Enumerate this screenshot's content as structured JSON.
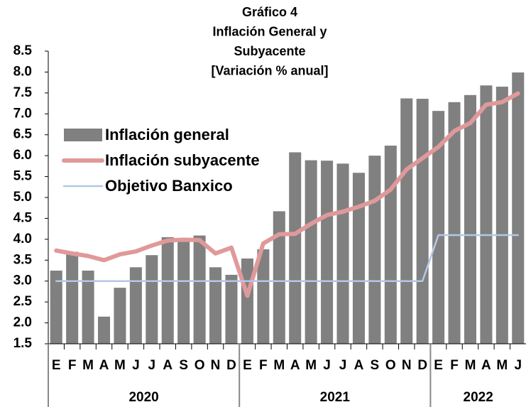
{
  "chart_data": {
    "type": "bar-line",
    "title": [
      "Gráfico 4",
      "Inflación General y",
      "Subyacente",
      "[Variación % anual]"
    ],
    "categories": [
      [
        "E",
        "2020"
      ],
      [
        "F",
        "2020"
      ],
      [
        "M",
        "2020"
      ],
      [
        "A",
        "2020"
      ],
      [
        "M",
        "2020"
      ],
      [
        "J",
        "2020"
      ],
      [
        "J",
        "2020"
      ],
      [
        "A",
        "2020"
      ],
      [
        "S",
        "2020"
      ],
      [
        "O",
        "2020"
      ],
      [
        "N",
        "2020"
      ],
      [
        "D",
        "2020"
      ],
      [
        "E",
        "2021"
      ],
      [
        "F",
        "2021"
      ],
      [
        "M",
        "2021"
      ],
      [
        "A",
        "2021"
      ],
      [
        "M",
        "2021"
      ],
      [
        "J",
        "2021"
      ],
      [
        "J",
        "2021"
      ],
      [
        "A",
        "2021"
      ],
      [
        "S",
        "2021"
      ],
      [
        "O",
        "2021"
      ],
      [
        "N",
        "2021"
      ],
      [
        "D",
        "2021"
      ],
      [
        "E",
        "2022"
      ],
      [
        "F",
        "2022"
      ],
      [
        "M",
        "2022"
      ],
      [
        "A",
        "2022"
      ],
      [
        "M",
        "2022"
      ],
      [
        "J",
        "2022"
      ]
    ],
    "series": [
      {
        "name": "Inflación general",
        "type": "bar",
        "color": "#808080",
        "values": [
          3.25,
          3.7,
          3.25,
          2.15,
          2.84,
          3.33,
          3.62,
          4.05,
          4.01,
          4.09,
          3.33,
          3.15,
          3.54,
          3.76,
          4.67,
          6.08,
          5.89,
          5.88,
          5.81,
          5.59,
          6.0,
          6.24,
          7.37,
          7.36,
          7.07,
          7.28,
          7.45,
          7.68,
          7.65,
          7.99
        ]
      },
      {
        "name": "Inflación subyacente",
        "type": "line",
        "color": "#e0999a",
        "width": 6,
        "values": [
          3.73,
          3.66,
          3.6,
          3.5,
          3.64,
          3.71,
          3.85,
          3.97,
          3.99,
          3.98,
          3.66,
          3.8,
          2.65,
          3.9,
          4.12,
          4.13,
          4.37,
          4.58,
          4.66,
          4.78,
          4.92,
          5.19,
          5.67,
          5.94,
          6.21,
          6.59,
          6.78,
          7.22,
          7.28,
          7.49
        ]
      },
      {
        "name": "Objetivo Banxico",
        "type": "line",
        "color": "#b4c7e7",
        "width": 2.5,
        "values": [
          3,
          3,
          3,
          3,
          3,
          3,
          3,
          3,
          3,
          3,
          3,
          3,
          3,
          3,
          3,
          3,
          3,
          3,
          3,
          3,
          3,
          3,
          3,
          3,
          4.1,
          4.1,
          4.1,
          4.1,
          4.1,
          4.1
        ]
      }
    ],
    "ylim": [
      1.5,
      8.5
    ],
    "yticks": [
      {
        "value": 1.5,
        "label": "1.5"
      },
      {
        "value": 2,
        "label": "2.0"
      },
      {
        "value": 2.5,
        "label": "2.5"
      },
      {
        "value": 3,
        "label": "3.0"
      },
      {
        "value": 3.5,
        "label": "3.5"
      },
      {
        "value": 4,
        "label": "4.0"
      },
      {
        "value": 4.5,
        "label": "4.5"
      },
      {
        "value": 5,
        "label": "5.0"
      },
      {
        "value": 5.5,
        "label": "5.5"
      },
      {
        "value": 6,
        "label": "6.0"
      },
      {
        "value": 6.5,
        "label": "6.5"
      },
      {
        "value": 7,
        "label": "7.0"
      },
      {
        "value": 7.5,
        "label": "7.5"
      },
      {
        "value": 8,
        "label": "8.0"
      },
      {
        "value": 8.5,
        "label": "8.5"
      }
    ],
    "legend": "upper left"
  }
}
